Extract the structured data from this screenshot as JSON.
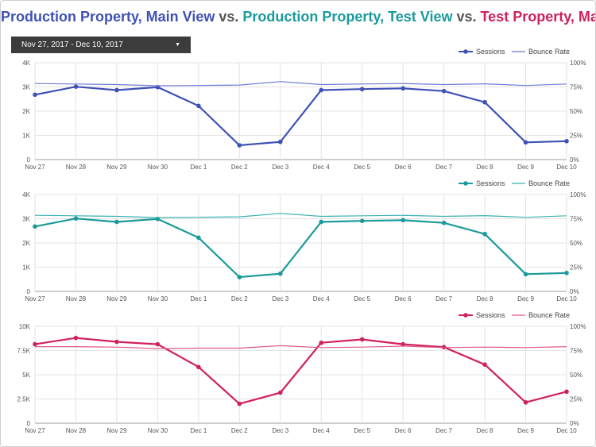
{
  "header": {
    "title_parts": [
      {
        "text": "Production Property, Main View",
        "color": "#3f51b5"
      },
      {
        "text": " vs. ",
        "color": "#555555"
      },
      {
        "text": "Production Property, Test View",
        "color": "#1a9a9a"
      },
      {
        "text": " vs. ",
        "color": "#555555"
      },
      {
        "text": "Test Property, Main View",
        "color": "#d0215d"
      }
    ]
  },
  "date_range": {
    "label": "Nov 27, 2017 - Dec 10, 2017",
    "dropdown_icon": "caret-down-icon"
  },
  "chart_data": [
    {
      "type": "line",
      "categories": [
        "Nov 27",
        "Nov 28",
        "Nov 29",
        "Nov 30",
        "Dec 1",
        "Dec 2",
        "Dec 3",
        "Dec 4",
        "Dec 5",
        "Dec 6",
        "Dec 7",
        "Dec 8",
        "Dec 9",
        "Dec 10"
      ],
      "color": "#3f51b5",
      "bounce_color": "#6c7bd0",
      "legend": {
        "sessions": "Sessions",
        "bounce": "Bounce Rate"
      },
      "series": [
        {
          "name": "Sessions",
          "axis": "left",
          "markers": true,
          "values": [
            2680,
            3010,
            2870,
            2990,
            2220,
            590,
            730,
            2870,
            2910,
            2940,
            2830,
            2370,
            710,
            760
          ]
        },
        {
          "name": "Bounce Rate",
          "axis": "right",
          "markers": false,
          "values": [
            78.5,
            78.0,
            77.5,
            76.2,
            76.5,
            77.0,
            80.5,
            77.5,
            78.0,
            78.5,
            77.5,
            78.2,
            76.5,
            78.0
          ]
        }
      ],
      "left_axis": {
        "ylim": [
          0,
          4000
        ],
        "ticks": [
          0,
          1000,
          2000,
          3000,
          4000
        ],
        "tick_labels": [
          "0",
          "1K",
          "2K",
          "3K",
          "4K"
        ]
      },
      "right_axis": {
        "ylim": [
          0,
          100
        ],
        "ticks": [
          0,
          25,
          50,
          75,
          100
        ],
        "tick_labels": [
          "0%",
          "25%",
          "50%",
          "75%",
          "100%"
        ]
      },
      "grid": true,
      "legend_position": "top-right"
    },
    {
      "type": "line",
      "categories": [
        "Nov 27",
        "Nov 28",
        "Nov 29",
        "Nov 30",
        "Dec 1",
        "Dec 2",
        "Dec 3",
        "Dec 4",
        "Dec 5",
        "Dec 6",
        "Dec 7",
        "Dec 8",
        "Dec 9",
        "Dec 10"
      ],
      "color": "#1a9a9a",
      "bounce_color": "#3bb0b0",
      "legend": {
        "sessions": "Sessions",
        "bounce": "Bounce Rate"
      },
      "series": [
        {
          "name": "Sessions",
          "axis": "left",
          "markers": true,
          "values": [
            2680,
            3010,
            2870,
            2990,
            2220,
            590,
            730,
            2870,
            2910,
            2940,
            2830,
            2370,
            710,
            760
          ]
        },
        {
          "name": "Bounce Rate",
          "axis": "right",
          "markers": false,
          "values": [
            78.5,
            78.0,
            77.5,
            76.2,
            76.5,
            77.0,
            80.5,
            77.5,
            78.0,
            78.5,
            77.5,
            78.2,
            76.5,
            78.0
          ]
        }
      ],
      "left_axis": {
        "ylim": [
          0,
          4000
        ],
        "ticks": [
          0,
          1000,
          2000,
          3000,
          4000
        ],
        "tick_labels": [
          "0",
          "1K",
          "2K",
          "3K",
          "4K"
        ]
      },
      "right_axis": {
        "ylim": [
          0,
          100
        ],
        "ticks": [
          0,
          25,
          50,
          75,
          100
        ],
        "tick_labels": [
          "0%",
          "25%",
          "50%",
          "75%",
          "100%"
        ]
      },
      "grid": true,
      "legend_position": "top-right"
    },
    {
      "type": "line",
      "categories": [
        "Nov 27",
        "Nov 28",
        "Nov 29",
        "Nov 30",
        "Dec 1",
        "Dec 2",
        "Dec 3",
        "Dec 4",
        "Dec 5",
        "Dec 6",
        "Dec 7",
        "Dec 8",
        "Dec 9",
        "Dec 10"
      ],
      "color": "#d0215d",
      "bounce_color": "#e05a8a",
      "legend": {
        "sessions": "Sessions",
        "bounce": "Bounce Rate"
      },
      "series": [
        {
          "name": "Sessions",
          "axis": "left",
          "markers": true,
          "values": [
            8150,
            8800,
            8400,
            8150,
            5800,
            2000,
            3150,
            8300,
            8650,
            8150,
            7850,
            6050,
            2150,
            3250
          ]
        },
        {
          "name": "Bounce Rate",
          "axis": "right",
          "markers": false,
          "values": [
            79.0,
            79.0,
            78.5,
            77.0,
            77.5,
            77.5,
            80.0,
            78.0,
            78.5,
            79.5,
            78.0,
            78.5,
            78.0,
            79.0
          ]
        }
      ],
      "left_axis": {
        "ylim": [
          0,
          10000
        ],
        "ticks": [
          0,
          2500,
          5000,
          7500,
          10000
        ],
        "tick_labels": [
          "0",
          "2.5K",
          "5K",
          "7.5K",
          "10K"
        ]
      },
      "right_axis": {
        "ylim": [
          0,
          100
        ],
        "ticks": [
          0,
          25,
          50,
          75,
          100
        ],
        "tick_labels": [
          "0%",
          "25%",
          "50%",
          "75%",
          "100%"
        ]
      },
      "grid": true,
      "legend_position": "top-right"
    }
  ]
}
